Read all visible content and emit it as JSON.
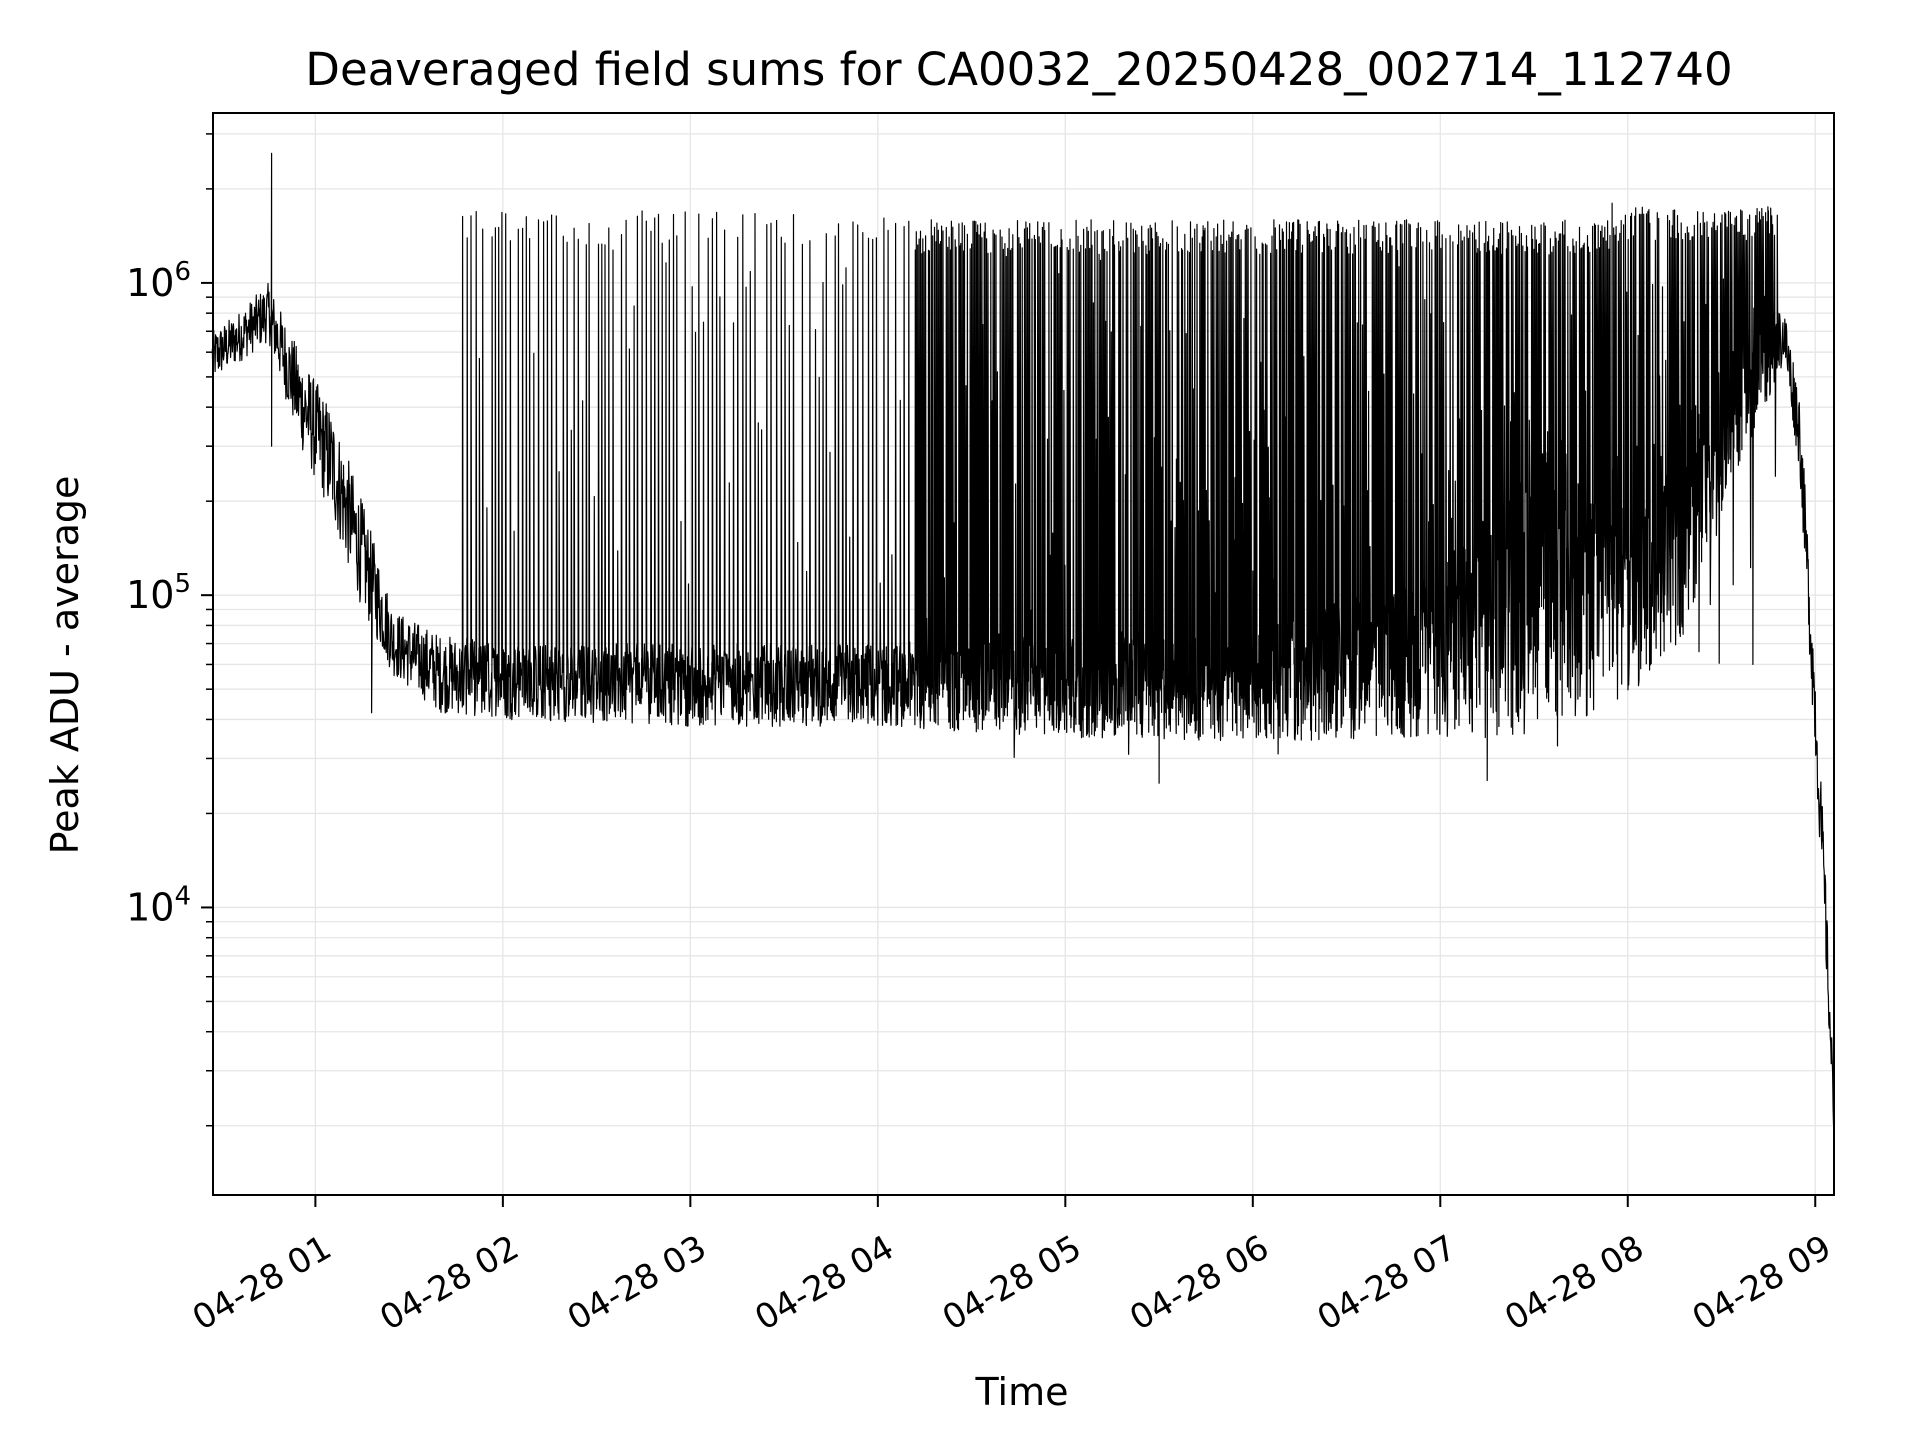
{
  "chart_data": {
    "type": "line",
    "title": "Deaveraged field sums for CA0032_20250428_002714_112740",
    "xlabel": "Time",
    "ylabel": "Peak ADU - average",
    "yscale": "log",
    "grid": true,
    "x_range": [
      "2025-04-28T00:27:14",
      "2025-04-28T09:06:00"
    ],
    "ylim": [
      1200,
      3500000
    ],
    "x_ticks": [
      {
        "label": "04-28 01",
        "time": "2025-04-28T01:00"
      },
      {
        "label": "04-28 02",
        "time": "2025-04-28T02:00"
      },
      {
        "label": "04-28 03",
        "time": "2025-04-28T03:00"
      },
      {
        "label": "04-28 04",
        "time": "2025-04-28T04:00"
      },
      {
        "label": "04-28 05",
        "time": "2025-04-28T05:00"
      },
      {
        "label": "04-28 06",
        "time": "2025-04-28T06:00"
      },
      {
        "label": "04-28 07",
        "time": "2025-04-28T07:00"
      },
      {
        "label": "04-28 08",
        "time": "2025-04-28T08:00"
      },
      {
        "label": "04-28 09",
        "time": "2025-04-28T09:00"
      }
    ],
    "y_ticks": [
      {
        "value": 10000,
        "base": "10",
        "exp": "4"
      },
      {
        "value": 100000,
        "base": "10",
        "exp": "5"
      },
      {
        "value": 1000000,
        "base": "10",
        "exp": "6"
      }
    ],
    "series": [
      {
        "color": "#000000",
        "envelope": [
          {
            "time": "2025-04-28T00:27",
            "low": 480000,
            "high": 700000
          },
          {
            "time": "2025-04-28T00:35",
            "low": 550000,
            "high": 800000
          },
          {
            "time": "2025-04-28T00:45",
            "low": 650000,
            "high": 1000000
          },
          {
            "time": "2025-04-28T00:55",
            "low": 300000,
            "high": 600000
          },
          {
            "time": "2025-04-28T01:05",
            "low": 180000,
            "high": 400000
          },
          {
            "time": "2025-04-28T01:15",
            "low": 90000,
            "high": 200000
          },
          {
            "time": "2025-04-28T01:25",
            "low": 55000,
            "high": 90000
          },
          {
            "time": "2025-04-28T01:40",
            "low": 42000,
            "high": 75000
          },
          {
            "time": "2025-04-28T02:00",
            "low": 40000,
            "high": 70000
          },
          {
            "time": "2025-04-28T03:00",
            "low": 38000,
            "high": 70000
          },
          {
            "time": "2025-04-28T04:00",
            "low": 38000,
            "high": 70000
          },
          {
            "time": "2025-04-28T05:00",
            "low": 35000,
            "high": 75000
          },
          {
            "time": "2025-04-28T06:00",
            "low": 34000,
            "high": 80000
          },
          {
            "time": "2025-04-28T07:00",
            "low": 35000,
            "high": 120000
          },
          {
            "time": "2025-04-28T07:20",
            "low": 35000,
            "high": 300000
          },
          {
            "time": "2025-04-28T07:45",
            "low": 40000,
            "high": 350000
          },
          {
            "time": "2025-04-28T08:05",
            "low": 50000,
            "high": 220000
          },
          {
            "time": "2025-04-28T08:20",
            "low": 80000,
            "high": 400000
          },
          {
            "time": "2025-04-28T08:35",
            "low": 250000,
            "high": 700000
          },
          {
            "time": "2025-04-28T08:50",
            "low": 550000,
            "high": 850000
          },
          {
            "time": "2025-04-28T08:55",
            "low": 250000,
            "high": 450000
          },
          {
            "time": "2025-04-28T09:00",
            "low": 30000,
            "high": 60000
          },
          {
            "time": "2025-04-28T09:03",
            "low": 8000,
            "high": 15000
          },
          {
            "time": "2025-04-28T09:06",
            "low": 1700,
            "high": 2500
          }
        ],
        "spike_windows": [
          {
            "start": "2025-04-28T01:47",
            "end": "2025-04-28T04:10",
            "spike_high": 1550000,
            "spike_low": 100000,
            "period_min": 1.4
          },
          {
            "start": "2025-04-28T04:12",
            "end": "2025-04-28T07:58",
            "spike_high": 1450000,
            "spike_low": 30000,
            "period_min": 0.35
          },
          {
            "start": "2025-04-28T07:58",
            "end": "2025-04-28T08:48",
            "spike_high": 1600000,
            "spike_low": 60000,
            "period_min": 0.35
          }
        ],
        "notable_points": [
          {
            "time": "2025-04-28T00:46",
            "value": 2600000
          },
          {
            "time": "2025-04-28T00:46",
            "value": 300000
          },
          {
            "time": "2025-04-28T01:18",
            "value": 42000
          },
          {
            "time": "2025-04-28T05:30",
            "value": 25000
          },
          {
            "time": "2025-04-28T07:15",
            "value": 25500
          },
          {
            "time": "2025-04-28T07:55",
            "value": 1800000
          },
          {
            "time": "2025-04-28T08:45",
            "value": 1700000
          }
        ]
      }
    ]
  }
}
